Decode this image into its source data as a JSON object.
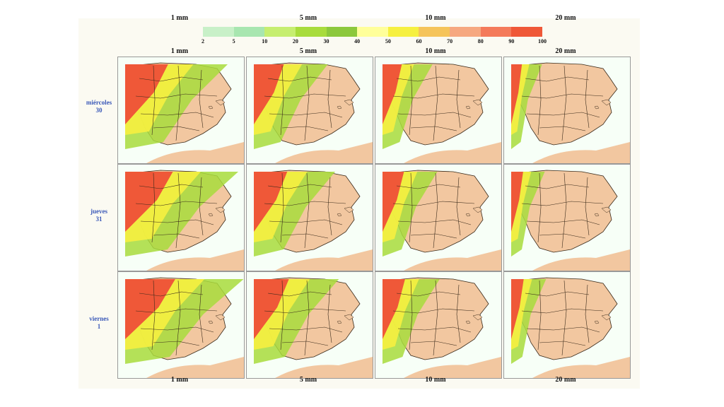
{
  "top_labels": [
    "1 mm",
    "5 mm",
    "10 mm",
    "20 mm"
  ],
  "column_labels_top": [
    "1 mm",
    "5 mm",
    "10 mm",
    "20 mm"
  ],
  "column_labels_bottom": [
    "1 mm",
    "5 mm",
    "10 mm",
    "20 mm"
  ],
  "legend": {
    "ticks": [
      "2",
      "5",
      "10",
      "20",
      "30",
      "40",
      "50",
      "60",
      "70",
      "80",
      "90",
      "100"
    ],
    "colors": [
      "#c8f0c8",
      "#a8e6b0",
      "#c6ee70",
      "#a8dc3c",
      "#8cc83c",
      "#ffff9a",
      "#f6f040",
      "#f5c45a",
      "#f6a880",
      "#f47a5a",
      "#ef5838"
    ]
  },
  "rows": [
    {
      "day": "miércoles",
      "date": "30"
    },
    {
      "day": "jueves",
      "date": "31"
    },
    {
      "day": "viernes",
      "date": "1"
    }
  ],
  "colors": {
    "land": "#f2c7a0",
    "sea": "#ffffff",
    "border": "#3a2a1a"
  }
}
